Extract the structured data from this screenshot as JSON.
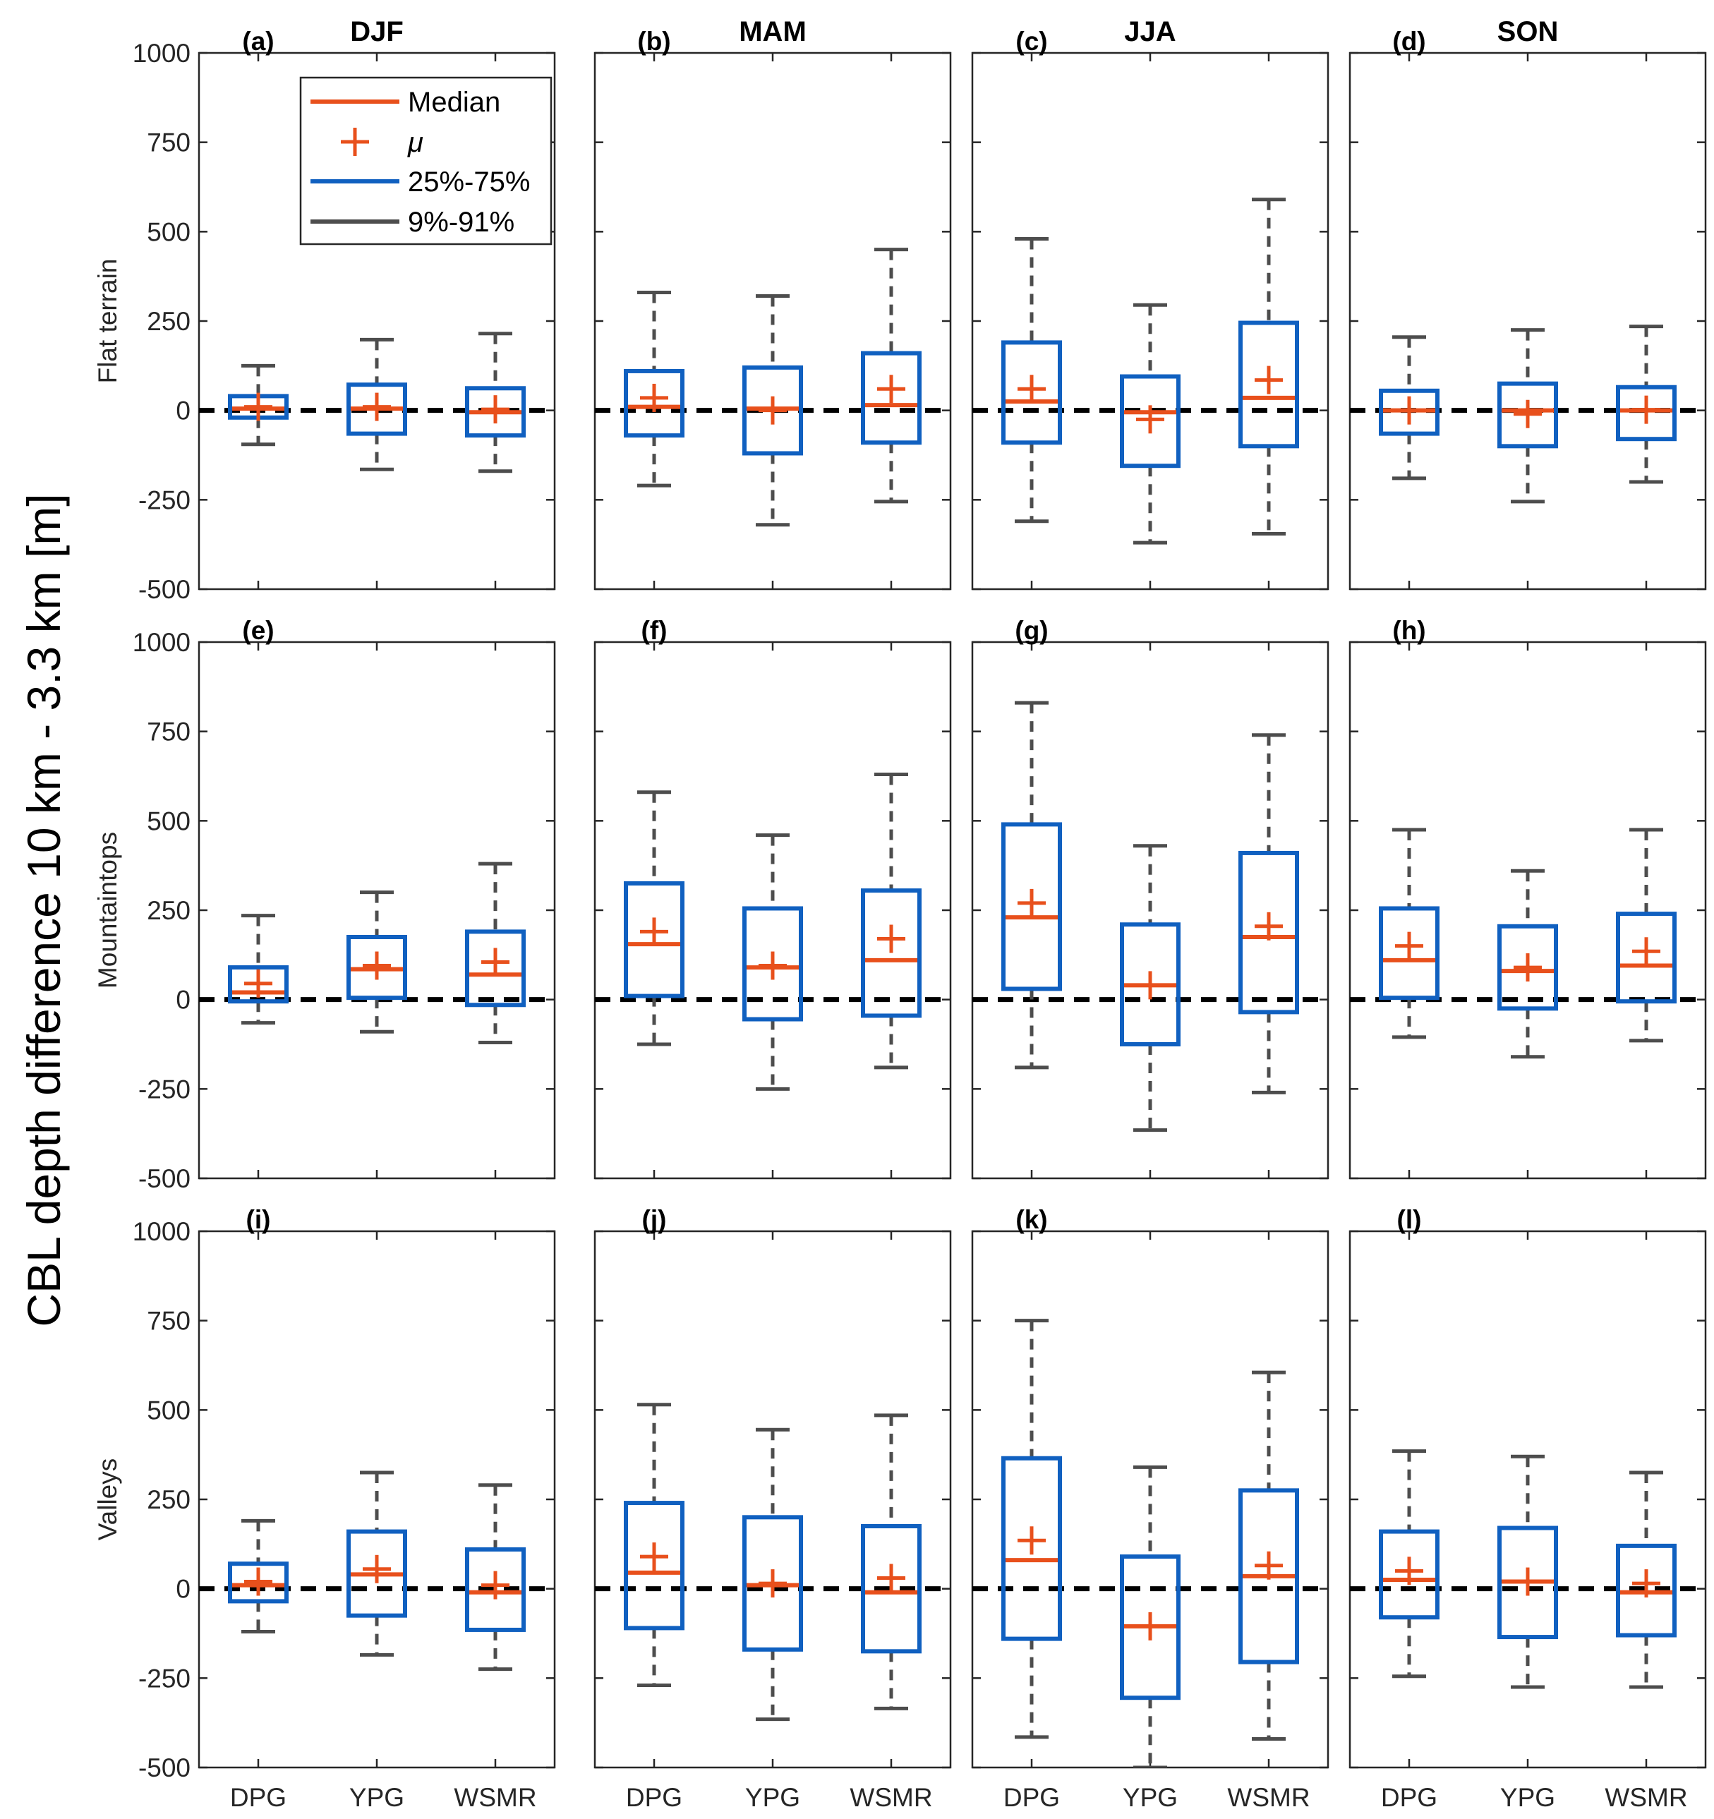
{
  "figure": {
    "ylabel": "CBL depth difference 10 km - 3.3 km [m]"
  },
  "legend": {
    "median": "Median",
    "mean": "μ",
    "iqr": "25%-75%",
    "whisker": "9%-91%"
  },
  "colors": {
    "median": "#e8501c",
    "box": "#1060c0",
    "whisker": "#4d4d4d",
    "zero_line": "#000000",
    "axes": "#262626"
  },
  "chart_data": {
    "type": "boxplot",
    "ylim": [
      -500,
      1000
    ],
    "yticks": [
      -500,
      -250,
      0,
      250,
      500,
      750,
      1000
    ],
    "categories": [
      "DPG",
      "YPG",
      "WSMR"
    ],
    "seasons": [
      "DJF",
      "MAM",
      "JJA",
      "SON"
    ],
    "rows": [
      "Flat terrain",
      "Mountaintops",
      "Valleys"
    ],
    "panels": [
      {
        "label": "(a)",
        "season": "DJF",
        "row": "Flat terrain",
        "boxes": [
          {
            "p9": -95,
            "q1": -20,
            "median": 5,
            "mean": 10,
            "q3": 40,
            "p91": 125
          },
          {
            "p9": -165,
            "q1": -65,
            "median": 5,
            "mean": 10,
            "q3": 72,
            "p91": 198
          },
          {
            "p9": -170,
            "q1": -70,
            "median": -5,
            "mean": 3,
            "q3": 62,
            "p91": 215
          }
        ]
      },
      {
        "label": "(b)",
        "season": "MAM",
        "row": "Flat terrain",
        "boxes": [
          {
            "p9": -210,
            "q1": -70,
            "median": 10,
            "mean": 35,
            "q3": 110,
            "p91": 330
          },
          {
            "p9": -320,
            "q1": -120,
            "median": 5,
            "mean": 0,
            "q3": 120,
            "p91": 320
          },
          {
            "p9": -255,
            "q1": -90,
            "median": 15,
            "mean": 60,
            "q3": 160,
            "p91": 450
          }
        ]
      },
      {
        "label": "(c)",
        "season": "JJA",
        "row": "Flat terrain",
        "boxes": [
          {
            "p9": -310,
            "q1": -90,
            "median": 25,
            "mean": 60,
            "q3": 190,
            "p91": 480
          },
          {
            "p9": -370,
            "q1": -155,
            "median": -5,
            "mean": -25,
            "q3": 95,
            "p91": 295
          },
          {
            "p9": -345,
            "q1": -100,
            "median": 35,
            "mean": 85,
            "q3": 245,
            "p91": 590
          }
        ]
      },
      {
        "label": "(d)",
        "season": "SON",
        "row": "Flat terrain",
        "boxes": [
          {
            "p9": -190,
            "q1": -65,
            "median": 0,
            "mean": 0,
            "q3": 55,
            "p91": 205
          },
          {
            "p9": -255,
            "q1": -100,
            "median": 0,
            "mean": -10,
            "q3": 75,
            "p91": 225
          },
          {
            "p9": -200,
            "q1": -80,
            "median": 0,
            "mean": 2,
            "q3": 65,
            "p91": 235
          }
        ]
      },
      {
        "label": "(e)",
        "season": "DJF",
        "row": "Mountaintops",
        "boxes": [
          {
            "p9": -65,
            "q1": -5,
            "median": 20,
            "mean": 45,
            "q3": 90,
            "p91": 235
          },
          {
            "p9": -90,
            "q1": 5,
            "median": 85,
            "mean": 95,
            "q3": 175,
            "p91": 300
          },
          {
            "p9": -120,
            "q1": -15,
            "median": 70,
            "mean": 105,
            "q3": 190,
            "p91": 380
          }
        ]
      },
      {
        "label": "(f)",
        "season": "MAM",
        "row": "Mountaintops",
        "boxes": [
          {
            "p9": -125,
            "q1": 10,
            "median": 155,
            "mean": 190,
            "q3": 325,
            "p91": 580
          },
          {
            "p9": -250,
            "q1": -55,
            "median": 90,
            "mean": 95,
            "q3": 255,
            "p91": 460
          },
          {
            "p9": -190,
            "q1": -45,
            "median": 110,
            "mean": 170,
            "q3": 305,
            "p91": 630
          }
        ]
      },
      {
        "label": "(g)",
        "season": "JJA",
        "row": "Mountaintops",
        "boxes": [
          {
            "p9": -190,
            "q1": 30,
            "median": 230,
            "mean": 270,
            "q3": 490,
            "p91": 830
          },
          {
            "p9": -365,
            "q1": -125,
            "median": 40,
            "mean": 40,
            "q3": 210,
            "p91": 430
          },
          {
            "p9": -260,
            "q1": -35,
            "median": 175,
            "mean": 205,
            "q3": 410,
            "p91": 740
          }
        ]
      },
      {
        "label": "(h)",
        "season": "SON",
        "row": "Mountaintops",
        "boxes": [
          {
            "p9": -105,
            "q1": 5,
            "median": 110,
            "mean": 150,
            "q3": 255,
            "p91": 475
          },
          {
            "p9": -160,
            "q1": -25,
            "median": 80,
            "mean": 90,
            "q3": 205,
            "p91": 360
          },
          {
            "p9": -115,
            "q1": -5,
            "median": 95,
            "mean": 135,
            "q3": 240,
            "p91": 475
          }
        ]
      },
      {
        "label": "(i)",
        "season": "DJF",
        "row": "Valleys",
        "boxes": [
          {
            "p9": -120,
            "q1": -35,
            "median": 10,
            "mean": 20,
            "q3": 70,
            "p91": 190
          },
          {
            "p9": -185,
            "q1": -75,
            "median": 40,
            "mean": 55,
            "q3": 160,
            "p91": 325
          },
          {
            "p9": -225,
            "q1": -115,
            "median": -10,
            "mean": 10,
            "q3": 110,
            "p91": 290
          }
        ]
      },
      {
        "label": "(j)",
        "season": "MAM",
        "row": "Valleys",
        "boxes": [
          {
            "p9": -270,
            "q1": -110,
            "median": 45,
            "mean": 90,
            "q3": 240,
            "p91": 515
          },
          {
            "p9": -365,
            "q1": -170,
            "median": 10,
            "mean": 15,
            "q3": 200,
            "p91": 445
          },
          {
            "p9": -335,
            "q1": -175,
            "median": -10,
            "mean": 30,
            "q3": 175,
            "p91": 485
          }
        ]
      },
      {
        "label": "(k)",
        "season": "JJA",
        "row": "Valleys",
        "boxes": [
          {
            "p9": -415,
            "q1": -140,
            "median": 80,
            "mean": 135,
            "q3": 365,
            "p91": 750
          },
          {
            "p9": -500,
            "q1": -305,
            "median": -105,
            "mean": -105,
            "q3": 90,
            "p91": 340
          },
          {
            "p9": -420,
            "q1": -205,
            "median": 35,
            "mean": 65,
            "q3": 275,
            "p91": 605
          }
        ]
      },
      {
        "label": "(l)",
        "season": "SON",
        "row": "Valleys",
        "boxes": [
          {
            "p9": -245,
            "q1": -80,
            "median": 25,
            "mean": 50,
            "q3": 160,
            "p91": 385
          },
          {
            "p9": -275,
            "q1": -135,
            "median": 20,
            "mean": 20,
            "q3": 170,
            "p91": 370
          },
          {
            "p9": -275,
            "q1": -130,
            "median": -10,
            "mean": 15,
            "q3": 120,
            "p91": 325
          }
        ]
      }
    ]
  }
}
